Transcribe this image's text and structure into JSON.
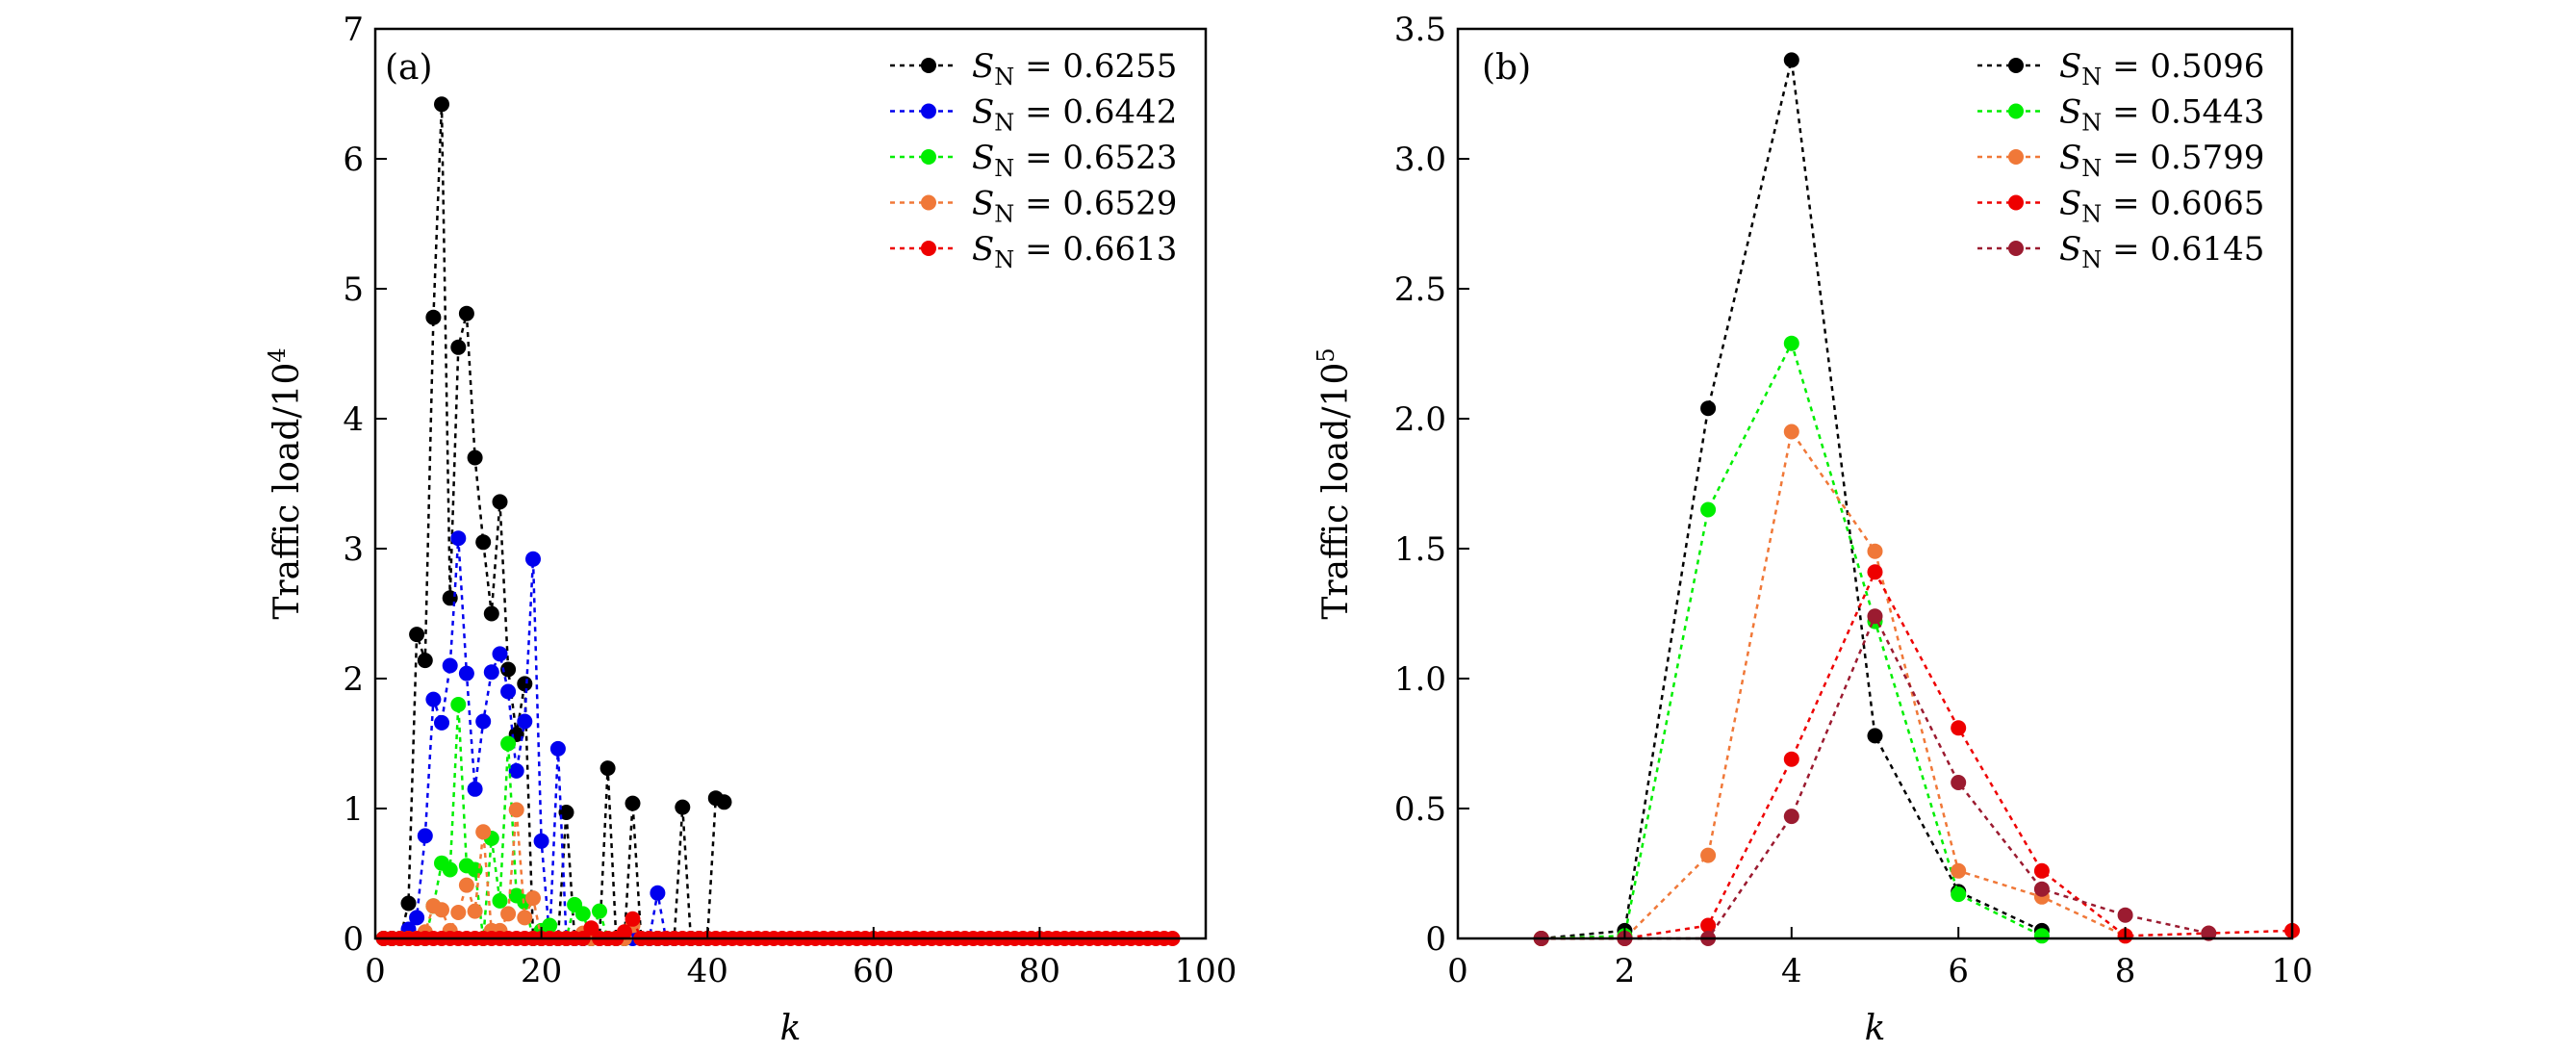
{
  "chart_data": [
    {
      "type": "line",
      "panel_label": "(a)",
      "xlabel": "k",
      "ylabel_main": "Traffic load/10",
      "ylabel_exp": "4",
      "xlim": [
        0,
        100
      ],
      "ylim": [
        0,
        7
      ],
      "xticks": [
        0,
        20,
        40,
        60,
        80,
        100
      ],
      "yticks": [
        0,
        1,
        2,
        3,
        4,
        5,
        6,
        7
      ],
      "legend_position": "top-right",
      "grid": false,
      "series": [
        {
          "name": "0.6255",
          "color": "#000000",
          "x": [
            1,
            2,
            3,
            4,
            5,
            6,
            7,
            8,
            9,
            10,
            11,
            12,
            13,
            14,
            15,
            16,
            17,
            18,
            19,
            20,
            21,
            22,
            23,
            24,
            25,
            26,
            27,
            28,
            29,
            30,
            31,
            32,
            33,
            34,
            35,
            36,
            37,
            38,
            39,
            40,
            41,
            42
          ],
          "y": [
            0,
            0,
            0,
            0.27,
            2.34,
            2.14,
            4.78,
            6.42,
            2.62,
            4.55,
            4.81,
            3.7,
            3.05,
            2.5,
            3.36,
            2.07,
            1.57,
            1.96,
            0,
            0,
            0,
            0,
            0.97,
            0,
            0,
            0,
            0,
            1.31,
            0,
            0,
            1.04,
            0,
            0,
            0,
            0,
            0,
            1.01,
            0,
            0,
            0,
            1.08,
            1.05
          ]
        },
        {
          "name": "0.6442",
          "color": "#0000ee",
          "x": [
            1,
            2,
            3,
            4,
            5,
            6,
            7,
            8,
            9,
            10,
            11,
            12,
            13,
            14,
            15,
            16,
            17,
            18,
            19,
            20,
            21,
            22,
            23,
            24,
            25,
            26,
            27,
            28,
            29,
            30,
            31,
            32,
            33,
            34,
            35
          ],
          "y": [
            0,
            0,
            0,
            0.07,
            0.16,
            0.79,
            1.84,
            1.66,
            2.1,
            3.08,
            2.04,
            1.15,
            1.67,
            2.05,
            2.19,
            1.9,
            1.29,
            1.67,
            2.92,
            0.75,
            0,
            1.46,
            0,
            0,
            0,
            0,
            0,
            0,
            0,
            0,
            0,
            0,
            0,
            0.35,
            0
          ]
        },
        {
          "name": "0.6523",
          "color": "#00ee00",
          "x": [
            1,
            2,
            3,
            4,
            5,
            6,
            7,
            8,
            9,
            10,
            11,
            12,
            13,
            14,
            15,
            16,
            17,
            18,
            19,
            20,
            21,
            22,
            23,
            24,
            25,
            26,
            27,
            28,
            29,
            30
          ],
          "y": [
            0,
            0,
            0,
            0,
            0,
            0,
            0.25,
            0.58,
            0.53,
            1.8,
            0.56,
            0.53,
            0,
            0.77,
            0.29,
            1.5,
            0.33,
            0.28,
            0,
            0.06,
            0.1,
            0,
            0,
            0.26,
            0.19,
            0,
            0.21,
            0,
            0,
            0
          ]
        },
        {
          "name": "0.6529",
          "color": "#f07838",
          "x": [
            1,
            2,
            3,
            4,
            5,
            6,
            7,
            8,
            9,
            10,
            11,
            12,
            13,
            14,
            15,
            16,
            17,
            18,
            19,
            20,
            21,
            22,
            23,
            24,
            25,
            26,
            27,
            28,
            29,
            30,
            31,
            32
          ],
          "y": [
            0,
            0,
            0,
            0,
            0,
            0.05,
            0.25,
            0.22,
            0.06,
            0.2,
            0.41,
            0.21,
            0.82,
            0.06,
            0.06,
            0.19,
            0.99,
            0.16,
            0.31,
            0,
            0,
            0,
            0,
            0,
            0.04,
            0,
            0,
            0,
            0,
            0,
            0.1,
            0
          ]
        },
        {
          "name": "0.6613",
          "color": "#ee0000",
          "x": [
            1,
            2,
            3,
            4,
            5,
            6,
            7,
            8,
            9,
            10,
            11,
            12,
            13,
            14,
            15,
            16,
            17,
            18,
            19,
            20,
            21,
            22,
            23,
            24,
            25,
            26,
            27,
            28,
            29,
            30,
            31,
            32,
            33,
            34,
            35,
            36,
            37,
            38,
            39,
            40,
            41,
            42,
            43,
            44,
            45,
            46,
            47,
            48,
            49,
            50,
            51,
            52,
            53,
            54,
            55,
            56,
            57,
            58,
            59,
            60,
            61,
            62,
            63,
            64,
            65,
            66,
            67,
            68,
            69,
            70,
            71,
            72,
            73,
            74,
            75,
            76,
            77,
            78,
            79,
            80,
            81,
            82,
            83,
            84,
            85,
            86,
            87,
            88,
            89,
            90,
            91,
            92,
            93,
            94,
            95,
            96
          ],
          "y": [
            0,
            0,
            0,
            0,
            0,
            0,
            0,
            0,
            0,
            0,
            0,
            0,
            0,
            0,
            0,
            0,
            0,
            0,
            0,
            0,
            0,
            0,
            0,
            0,
            0,
            0.08,
            0,
            0,
            0,
            0.05,
            0.15,
            0,
            0,
            0,
            0,
            0,
            0,
            0,
            0,
            0,
            0,
            0,
            0,
            0,
            0,
            0,
            0,
            0,
            0,
            0,
            0,
            0,
            0,
            0,
            0,
            0,
            0,
            0,
            0,
            0,
            0,
            0,
            0,
            0,
            0,
            0,
            0,
            0,
            0,
            0,
            0,
            0,
            0,
            0,
            0,
            0,
            0,
            0,
            0,
            0,
            0,
            0,
            0,
            0,
            0,
            0,
            0,
            0,
            0,
            0,
            0,
            0,
            0,
            0,
            0,
            0
          ]
        }
      ]
    },
    {
      "type": "line",
      "panel_label": "(b)",
      "xlabel": "k",
      "ylabel_main": "Traffic load/10",
      "ylabel_exp": "5",
      "xlim": [
        0,
        10
      ],
      "ylim": [
        0,
        3.5
      ],
      "xticks": [
        0,
        2,
        4,
        6,
        8,
        10
      ],
      "yticks": [
        0,
        0.5,
        1.0,
        1.5,
        2.0,
        2.5,
        3.0,
        3.5
      ],
      "yticklabels": [
        "0",
        "0.5",
        "1.0",
        "1.5",
        "2.0",
        "2.5",
        "3.0",
        "3.5"
      ],
      "legend_position": "top-right",
      "grid": false,
      "series": [
        {
          "name": "0.5096",
          "color": "#000000",
          "x": [
            1,
            2,
            3,
            4,
            5,
            6,
            7
          ],
          "y": [
            0,
            0.03,
            2.04,
            3.38,
            0.78,
            0.18,
            0.03
          ]
        },
        {
          "name": "0.5443",
          "color": "#00ee00",
          "x": [
            1,
            2,
            3,
            4,
            5,
            6,
            7
          ],
          "y": [
            0,
            0.01,
            1.65,
            2.29,
            1.22,
            0.17,
            0.01
          ]
        },
        {
          "name": "0.5799",
          "color": "#f07838",
          "x": [
            1,
            2,
            3,
            4,
            5,
            6,
            7,
            8
          ],
          "y": [
            0,
            0,
            0.32,
            1.95,
            1.49,
            0.26,
            0.16,
            0.01
          ]
        },
        {
          "name": "0.6065",
          "color": "#ee0000",
          "x": [
            1,
            2,
            3,
            4,
            5,
            6,
            7,
            8,
            9,
            10
          ],
          "y": [
            0,
            0,
            0.05,
            0.69,
            1.41,
            0.81,
            0.26,
            0.01,
            0.02,
            0.03
          ]
        },
        {
          "name": "0.6145",
          "color": "#9b1b30",
          "x": [
            1,
            2,
            3,
            4,
            5,
            6,
            7,
            8,
            9
          ],
          "y": [
            0,
            0,
            0,
            0.47,
            1.24,
            0.6,
            0.19,
            0.09,
            0.02
          ]
        }
      ]
    }
  ]
}
